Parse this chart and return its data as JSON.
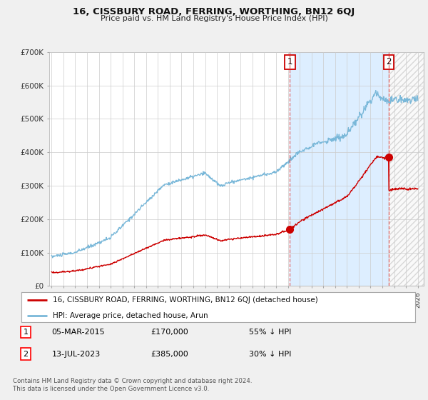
{
  "title": "16, CISSBURY ROAD, FERRING, WORTHING, BN12 6QJ",
  "subtitle": "Price paid vs. HM Land Registry's House Price Index (HPI)",
  "ylabel_ticks": [
    "£0",
    "£100K",
    "£200K",
    "£300K",
    "£400K",
    "£500K",
    "£600K",
    "£700K"
  ],
  "ylim": [
    0,
    700000
  ],
  "xlim_start": 1994.8,
  "xlim_end": 2026.5,
  "xticks": [
    1995,
    1996,
    1997,
    1998,
    1999,
    2000,
    2001,
    2002,
    2003,
    2004,
    2005,
    2006,
    2007,
    2008,
    2009,
    2010,
    2011,
    2012,
    2013,
    2014,
    2015,
    2016,
    2017,
    2018,
    2019,
    2020,
    2021,
    2022,
    2023,
    2024,
    2025,
    2026
  ],
  "sale1_date": 2015.17,
  "sale1_price": 170000,
  "sale2_date": 2023.54,
  "sale2_price": 385000,
  "hpi_color": "#7ab8d9",
  "price_color": "#cc0000",
  "legend_property": "16, CISSBURY ROAD, FERRING, WORTHING, BN12 6QJ (detached house)",
  "legend_hpi": "HPI: Average price, detached house, Arun",
  "table_row1": [
    "1",
    "05-MAR-2015",
    "£170,000",
    "55% ↓ HPI"
  ],
  "table_row2": [
    "2",
    "13-JUL-2023",
    "£385,000",
    "30% ↓ HPI"
  ],
  "footnote": "Contains HM Land Registry data © Crown copyright and database right 2024.\nThis data is licensed under the Open Government Licence v3.0.",
  "bg_color": "#f0f0f0",
  "plot_bg_color": "#ffffff",
  "grid_color": "#cccccc",
  "shade_color": "#ddeeff",
  "annot_box_color": "#cc0000"
}
